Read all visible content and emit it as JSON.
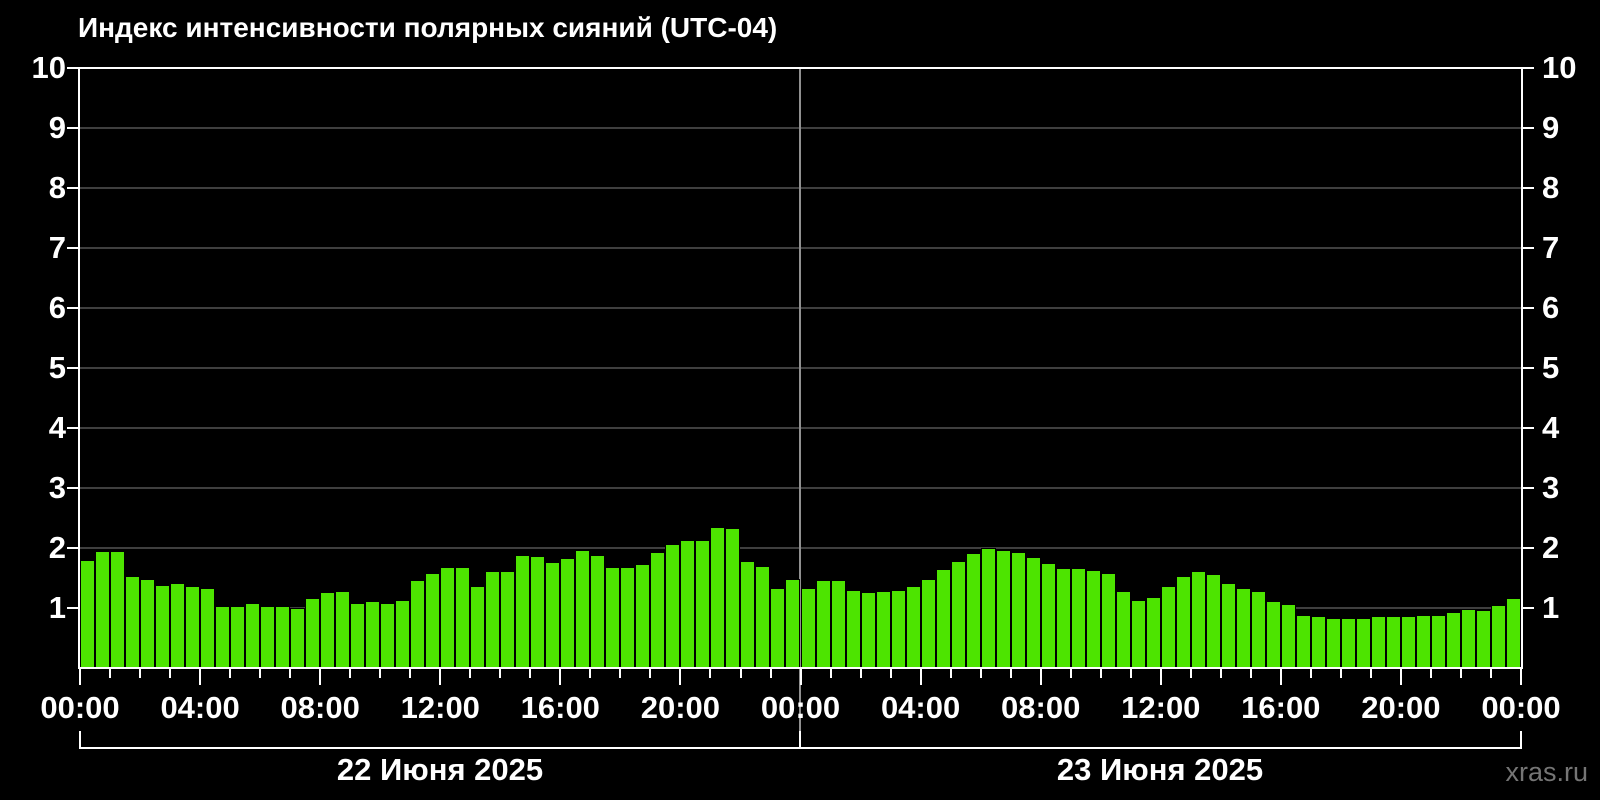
{
  "title": "Индекс интенсивности полярных сияний (UTC-04)",
  "watermark": "xras.ru",
  "colors": {
    "background": "#000000",
    "bar": "#4de400",
    "bar_outline": "#000000",
    "grid": "#3f3f3f",
    "axis": "#ffffff",
    "text": "#ffffff",
    "day_divider": "#909090",
    "watermark": "#757575"
  },
  "y_axis": {
    "min": 0,
    "max": 10,
    "ticks": [
      "1",
      "2",
      "3",
      "4",
      "5",
      "6",
      "7",
      "8",
      "9",
      "10"
    ],
    "labels_on_both_sides": true
  },
  "x_axis": {
    "labels": [
      "00:00",
      "04:00",
      "08:00",
      "12:00",
      "16:00",
      "20:00",
      "00:00",
      "04:00",
      "08:00",
      "12:00",
      "16:00",
      "20:00",
      "00:00"
    ],
    "hours_per_label": 4,
    "minor_tick_every_hours": 1,
    "total_hours": 48
  },
  "day_labels": [
    "22 Июня 2025",
    "23 Июня 2025"
  ],
  "chart_data": {
    "type": "bar",
    "title": "Индекс интенсивности полярных сияний (UTC-04)",
    "ylabel": "",
    "xlabel": "",
    "ylim": [
      0,
      10
    ],
    "grid": true,
    "legend": "none",
    "interval_minutes": 30,
    "days": [
      {
        "date": "22 Июня 2025",
        "values": [
          1.8,
          1.95,
          1.95,
          1.53,
          1.48,
          1.38,
          1.42,
          1.37,
          1.33,
          1.03,
          1.03,
          1.09,
          1.03,
          1.03,
          1.0,
          1.17,
          1.27,
          1.29,
          1.09,
          1.12,
          1.09,
          1.13,
          1.47,
          1.59,
          1.69,
          1.69,
          1.36,
          1.62,
          1.62,
          1.89,
          1.87,
          1.76,
          1.83,
          1.97,
          1.89,
          1.69,
          1.69,
          1.73,
          1.94,
          2.07,
          2.14,
          2.14,
          2.35,
          2.33,
          1.78,
          1.7,
          1.33,
          1.48
        ]
      },
      {
        "date": "23 Июня 2025",
        "values": [
          1.34,
          1.47,
          1.47,
          1.3,
          1.27,
          1.29,
          1.3,
          1.37,
          1.48,
          1.65,
          1.78,
          1.92,
          2.0,
          1.97,
          1.93,
          1.85,
          1.75,
          1.67,
          1.67,
          1.64,
          1.58,
          1.28,
          1.13,
          1.18,
          1.37,
          1.53,
          1.62,
          1.56,
          1.42,
          1.34,
          1.28,
          1.12,
          1.06,
          0.89,
          0.87,
          0.84,
          0.83,
          0.83,
          0.86,
          0.86,
          0.87,
          0.88,
          0.89,
          0.94,
          0.99,
          0.97,
          1.05,
          1.17
        ]
      }
    ]
  }
}
